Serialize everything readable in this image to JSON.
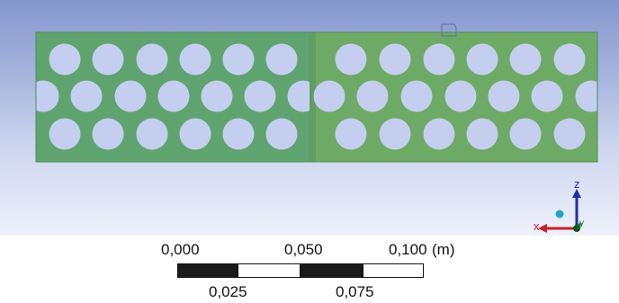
{
  "viewport": {
    "background_top": "#8496cc",
    "background_bottom": "#eef1fa",
    "plate_left_color": "#5fa46e",
    "plate_right_color": "#6daa65",
    "hole_fill": "#c4cfef",
    "probe_marker_icon": "square-outline-icon"
  },
  "triad": {
    "z_label": "z",
    "x_label": "x",
    "y_label": "y",
    "z_color": "#1f2fa8",
    "x_color": "#c8202a",
    "y_color": "#1e8a2e",
    "iso_ball_color": "#22a8b8"
  },
  "scale_bar": {
    "labels_top": [
      "0,000",
      "0,050",
      "0,100"
    ],
    "unit": "(m)",
    "labels_bottom": [
      "0,025",
      "0,075"
    ]
  }
}
